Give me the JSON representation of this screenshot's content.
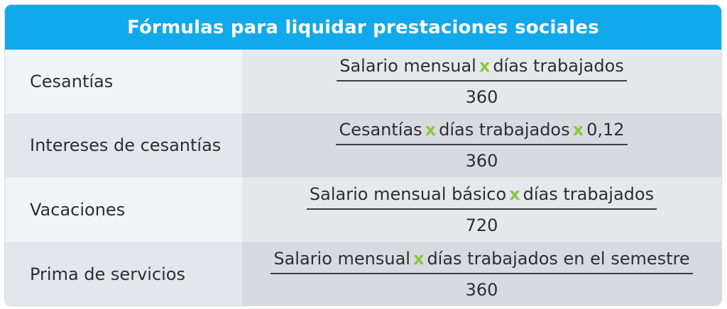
{
  "title": "Fórmulas para liquidar prestaciones sociales",
  "operator": "x",
  "accent_color": "#12a9ec",
  "operator_color": "#8cc63f",
  "rows": [
    {
      "label": "Cesantías",
      "numerator_parts": [
        "Salario mensual",
        "días trabajados"
      ],
      "denominator": "360"
    },
    {
      "label": "Intereses de cesantías",
      "numerator_parts": [
        "Cesantías",
        "días trabajados",
        "0,12"
      ],
      "denominator": "360"
    },
    {
      "label": "Vacaciones",
      "numerator_parts": [
        "Salario mensual básico",
        "días trabajados"
      ],
      "denominator": "720"
    },
    {
      "label": "Prima de servicios",
      "numerator_parts": [
        "Salario mensual",
        "días trabajados en el semestre"
      ],
      "denominator": "360"
    }
  ]
}
